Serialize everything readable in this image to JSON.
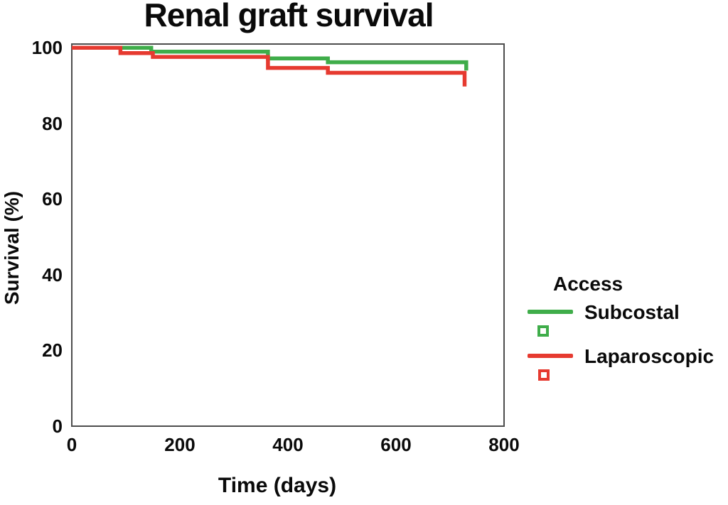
{
  "chart_data": {
    "type": "line",
    "subtype": "kaplan-meier-step",
    "title": "Renal graft survival",
    "xlabel": "Time (days)",
    "ylabel": "Survival (%)",
    "xlim": [
      0,
      800
    ],
    "ylim": [
      0,
      101
    ],
    "x_ticks": [
      0,
      200,
      400,
      600,
      800
    ],
    "y_ticks": [
      0,
      20,
      40,
      60,
      80,
      100
    ],
    "grid": false,
    "legend": {
      "title": "Access",
      "position": "right-outside",
      "marker": "open-square"
    },
    "series": [
      {
        "name": "Subcostal",
        "color": "#3fad4a",
        "points": [
          [
            0,
            100
          ],
          [
            147,
            100
          ],
          [
            147,
            99
          ],
          [
            363,
            99
          ],
          [
            363,
            97.2
          ],
          [
            474,
            97.2
          ],
          [
            474,
            96.2
          ],
          [
            730,
            96.2
          ],
          [
            730,
            94
          ]
        ]
      },
      {
        "name": "Laparoscopic",
        "color": "#e63a30",
        "points": [
          [
            0,
            100
          ],
          [
            90,
            100
          ],
          [
            90,
            98.6
          ],
          [
            150,
            98.6
          ],
          [
            150,
            97.6
          ],
          [
            363,
            97.6
          ],
          [
            363,
            94.7
          ],
          [
            474,
            94.7
          ],
          [
            474,
            93.4
          ],
          [
            727,
            93.4
          ],
          [
            727,
            89.8
          ]
        ]
      }
    ]
  },
  "colors": {
    "frame": "#4d4d4d",
    "text": "#0a0a0a",
    "background": "#ffffff"
  }
}
